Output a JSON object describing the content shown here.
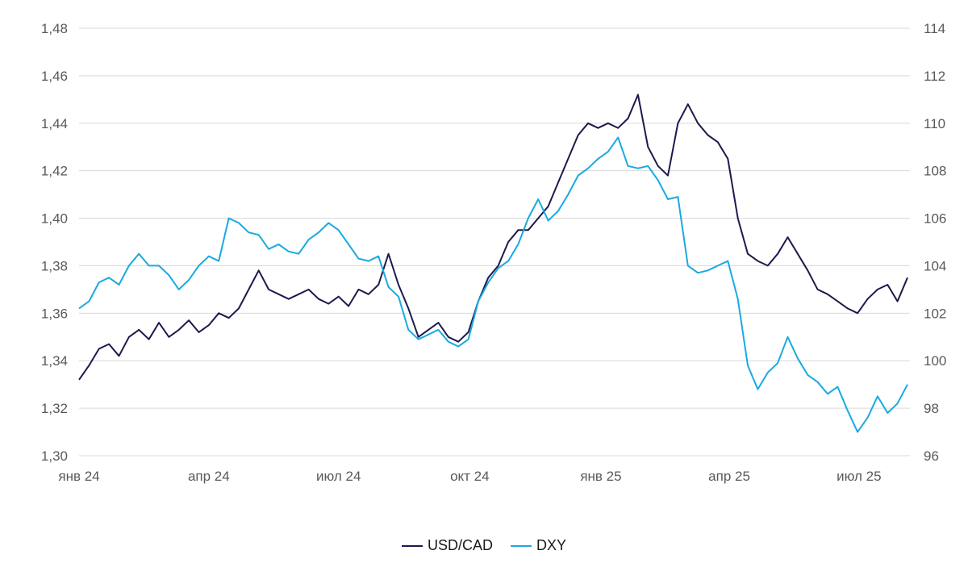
{
  "chart_data": {
    "type": "line",
    "title": "",
    "xlabel": "",
    "ylabel": "",
    "x_tick_labels": [
      "янв 24",
      "апр 24",
      "июл 24",
      "окт 24",
      "янв 25",
      "апр 25",
      "июл 25"
    ],
    "y_left": {
      "range": [
        1.3,
        1.48
      ],
      "ticks": [
        "1,30",
        "1,32",
        "1,34",
        "1,36",
        "1,38",
        "1,40",
        "1,42",
        "1,44",
        "1,46",
        "1,48"
      ]
    },
    "y_right": {
      "range": [
        96,
        114
      ],
      "ticks": [
        "96",
        "98",
        "100",
        "102",
        "104",
        "106",
        "108",
        "110",
        "112",
        "114"
      ]
    },
    "grid": true,
    "legend_position": "bottom-center",
    "series": [
      {
        "name": "USD/CAD",
        "axis": "left",
        "color": "#1b1a4e",
        "points": [
          [
            "2024-01-01",
            1.332
          ],
          [
            "2024-01-08",
            1.338
          ],
          [
            "2024-01-15",
            1.345
          ],
          [
            "2024-01-22",
            1.347
          ],
          [
            "2024-01-29",
            1.342
          ],
          [
            "2024-02-05",
            1.35
          ],
          [
            "2024-02-12",
            1.353
          ],
          [
            "2024-02-19",
            1.349
          ],
          [
            "2024-02-26",
            1.356
          ],
          [
            "2024-03-04",
            1.35
          ],
          [
            "2024-03-11",
            1.353
          ],
          [
            "2024-03-18",
            1.357
          ],
          [
            "2024-03-25",
            1.352
          ],
          [
            "2024-04-01",
            1.355
          ],
          [
            "2024-04-08",
            1.36
          ],
          [
            "2024-04-15",
            1.358
          ],
          [
            "2024-04-22",
            1.362
          ],
          [
            "2024-04-29",
            1.37
          ],
          [
            "2024-05-06",
            1.378
          ],
          [
            "2024-05-13",
            1.37
          ],
          [
            "2024-05-20",
            1.368
          ],
          [
            "2024-05-27",
            1.366
          ],
          [
            "2024-06-03",
            1.368
          ],
          [
            "2024-06-10",
            1.37
          ],
          [
            "2024-06-17",
            1.366
          ],
          [
            "2024-06-24",
            1.364
          ],
          [
            "2024-07-01",
            1.367
          ],
          [
            "2024-07-08",
            1.363
          ],
          [
            "2024-07-15",
            1.37
          ],
          [
            "2024-07-22",
            1.368
          ],
          [
            "2024-07-29",
            1.372
          ],
          [
            "2024-08-05",
            1.385
          ],
          [
            "2024-08-12",
            1.372
          ],
          [
            "2024-08-19",
            1.362
          ],
          [
            "2024-08-26",
            1.35
          ],
          [
            "2024-09-02",
            1.353
          ],
          [
            "2024-09-09",
            1.356
          ],
          [
            "2024-09-16",
            1.35
          ],
          [
            "2024-09-23",
            1.348
          ],
          [
            "2024-09-30",
            1.352
          ],
          [
            "2024-10-07",
            1.365
          ],
          [
            "2024-10-14",
            1.375
          ],
          [
            "2024-10-21",
            1.38
          ],
          [
            "2024-10-28",
            1.39
          ],
          [
            "2024-11-04",
            1.395
          ],
          [
            "2024-11-11",
            1.395
          ],
          [
            "2024-11-18",
            1.4
          ],
          [
            "2024-11-25",
            1.405
          ],
          [
            "2024-12-02",
            1.415
          ],
          [
            "2024-12-09",
            1.425
          ],
          [
            "2024-12-16",
            1.435
          ],
          [
            "2024-12-23",
            1.44
          ],
          [
            "2024-12-30",
            1.438
          ],
          [
            "2025-01-06",
            1.44
          ],
          [
            "2025-01-13",
            1.438
          ],
          [
            "2025-01-20",
            1.442
          ],
          [
            "2025-01-27",
            1.452
          ],
          [
            "2025-02-03",
            1.43
          ],
          [
            "2025-02-10",
            1.422
          ],
          [
            "2025-02-17",
            1.418
          ],
          [
            "2025-02-24",
            1.44
          ],
          [
            "2025-03-03",
            1.448
          ],
          [
            "2025-03-10",
            1.44
          ],
          [
            "2025-03-17",
            1.435
          ],
          [
            "2025-03-24",
            1.432
          ],
          [
            "2025-03-31",
            1.425
          ],
          [
            "2025-04-07",
            1.4
          ],
          [
            "2025-04-14",
            1.385
          ],
          [
            "2025-04-21",
            1.382
          ],
          [
            "2025-04-28",
            1.38
          ],
          [
            "2025-05-05",
            1.385
          ],
          [
            "2025-05-12",
            1.392
          ],
          [
            "2025-05-19",
            1.385
          ],
          [
            "2025-05-26",
            1.378
          ],
          [
            "2025-06-02",
            1.37
          ],
          [
            "2025-06-09",
            1.368
          ],
          [
            "2025-06-16",
            1.365
          ],
          [
            "2025-06-23",
            1.362
          ],
          [
            "2025-06-30",
            1.36
          ],
          [
            "2025-07-07",
            1.366
          ],
          [
            "2025-07-14",
            1.37
          ],
          [
            "2025-07-21",
            1.372
          ],
          [
            "2025-07-28",
            1.365
          ],
          [
            "2025-08-04",
            1.375
          ]
        ]
      },
      {
        "name": "DXY",
        "axis": "right",
        "color": "#19a9e1",
        "points": [
          [
            "2024-01-01",
            102.2
          ],
          [
            "2024-01-08",
            102.5
          ],
          [
            "2024-01-15",
            103.3
          ],
          [
            "2024-01-22",
            103.5
          ],
          [
            "2024-01-29",
            103.2
          ],
          [
            "2024-02-05",
            104.0
          ],
          [
            "2024-02-12",
            104.5
          ],
          [
            "2024-02-19",
            104.0
          ],
          [
            "2024-02-26",
            104.0
          ],
          [
            "2024-03-04",
            103.6
          ],
          [
            "2024-03-11",
            103.0
          ],
          [
            "2024-03-18",
            103.4
          ],
          [
            "2024-03-25",
            104.0
          ],
          [
            "2024-04-01",
            104.4
          ],
          [
            "2024-04-08",
            104.2
          ],
          [
            "2024-04-15",
            106.0
          ],
          [
            "2024-04-22",
            105.8
          ],
          [
            "2024-04-29",
            105.4
          ],
          [
            "2024-05-06",
            105.3
          ],
          [
            "2024-05-13",
            104.7
          ],
          [
            "2024-05-20",
            104.9
          ],
          [
            "2024-05-27",
            104.6
          ],
          [
            "2024-06-03",
            104.5
          ],
          [
            "2024-06-10",
            105.1
          ],
          [
            "2024-06-17",
            105.4
          ],
          [
            "2024-06-24",
            105.8
          ],
          [
            "2024-07-01",
            105.5
          ],
          [
            "2024-07-08",
            104.9
          ],
          [
            "2024-07-15",
            104.3
          ],
          [
            "2024-07-22",
            104.2
          ],
          [
            "2024-07-29",
            104.4
          ],
          [
            "2024-08-05",
            103.1
          ],
          [
            "2024-08-12",
            102.7
          ],
          [
            "2024-08-19",
            101.3
          ],
          [
            "2024-08-26",
            100.9
          ],
          [
            "2024-09-02",
            101.1
          ],
          [
            "2024-09-09",
            101.3
          ],
          [
            "2024-09-16",
            100.8
          ],
          [
            "2024-09-23",
            100.6
          ],
          [
            "2024-09-30",
            100.9
          ],
          [
            "2024-10-07",
            102.5
          ],
          [
            "2024-10-14",
            103.3
          ],
          [
            "2024-10-21",
            103.9
          ],
          [
            "2024-10-28",
            104.2
          ],
          [
            "2024-11-04",
            104.9
          ],
          [
            "2024-11-11",
            106.0
          ],
          [
            "2024-11-18",
            106.8
          ],
          [
            "2024-11-25",
            105.9
          ],
          [
            "2024-12-02",
            106.3
          ],
          [
            "2024-12-09",
            107.0
          ],
          [
            "2024-12-16",
            107.8
          ],
          [
            "2024-12-23",
            108.1
          ],
          [
            "2024-12-30",
            108.5
          ],
          [
            "2025-01-06",
            108.8
          ],
          [
            "2025-01-13",
            109.4
          ],
          [
            "2025-01-20",
            108.2
          ],
          [
            "2025-01-27",
            108.1
          ],
          [
            "2025-02-03",
            108.2
          ],
          [
            "2025-02-10",
            107.6
          ],
          [
            "2025-02-17",
            106.8
          ],
          [
            "2025-02-24",
            106.9
          ],
          [
            "2025-03-03",
            104.0
          ],
          [
            "2025-03-10",
            103.7
          ],
          [
            "2025-03-17",
            103.8
          ],
          [
            "2025-03-24",
            104.0
          ],
          [
            "2025-03-31",
            104.2
          ],
          [
            "2025-04-07",
            102.6
          ],
          [
            "2025-04-14",
            99.8
          ],
          [
            "2025-04-21",
            98.8
          ],
          [
            "2025-04-28",
            99.5
          ],
          [
            "2025-05-05",
            99.9
          ],
          [
            "2025-05-12",
            101.0
          ],
          [
            "2025-05-19",
            100.1
          ],
          [
            "2025-05-26",
            99.4
          ],
          [
            "2025-06-02",
            99.1
          ],
          [
            "2025-06-09",
            98.6
          ],
          [
            "2025-06-16",
            98.9
          ],
          [
            "2025-06-23",
            97.9
          ],
          [
            "2025-06-30",
            97.0
          ],
          [
            "2025-07-07",
            97.6
          ],
          [
            "2025-07-14",
            98.5
          ],
          [
            "2025-07-21",
            97.8
          ],
          [
            "2025-07-28",
            98.2
          ],
          [
            "2025-08-04",
            99.0
          ]
        ]
      }
    ]
  }
}
